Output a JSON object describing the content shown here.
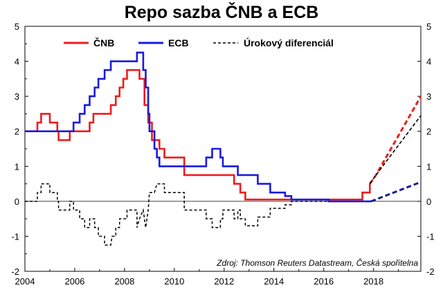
{
  "chart_data": {
    "type": "line",
    "title": "Repo sazba ČNB a ECB",
    "source": "Zdroj: Thomson Reuters Datastream, Česká spořitelna",
    "xlim": [
      2004,
      2019.9
    ],
    "ylim": [
      -2,
      5
    ],
    "x_ticks": [
      2004,
      2006,
      2008,
      2010,
      2012,
      2014,
      2016,
      2018
    ],
    "y_ticks": [
      -2,
      -1,
      0,
      1,
      2,
      3,
      4,
      5
    ],
    "grid": false,
    "legend_position": "top",
    "colors": {
      "cnb": "#ee1c1c",
      "ecb": "#1a1adf",
      "diff": "#000000",
      "forecast_ecb": "#1a1a8c"
    },
    "series": [
      {
        "name": "ČNB",
        "style": "solid",
        "points": [
          [
            2004,
            2.0
          ],
          [
            2004.5,
            2.0
          ],
          [
            2004.5,
            2.25
          ],
          [
            2004.65,
            2.25
          ],
          [
            2004.65,
            2.5
          ],
          [
            2005.0,
            2.5
          ],
          [
            2005.0,
            2.25
          ],
          [
            2005.3,
            2.25
          ],
          [
            2005.3,
            2.0
          ],
          [
            2005.35,
            2.0
          ],
          [
            2005.35,
            1.75
          ],
          [
            2005.8,
            1.75
          ],
          [
            2005.8,
            2.0
          ],
          [
            2006.6,
            2.0
          ],
          [
            2006.6,
            2.25
          ],
          [
            2006.75,
            2.25
          ],
          [
            2006.75,
            2.5
          ],
          [
            2007.45,
            2.5
          ],
          [
            2007.45,
            2.75
          ],
          [
            2007.65,
            2.75
          ],
          [
            2007.65,
            3.0
          ],
          [
            2007.8,
            3.0
          ],
          [
            2007.8,
            3.25
          ],
          [
            2007.95,
            3.25
          ],
          [
            2007.95,
            3.5
          ],
          [
            2008.1,
            3.5
          ],
          [
            2008.1,
            3.75
          ],
          [
            2008.6,
            3.75
          ],
          [
            2008.6,
            3.5
          ],
          [
            2008.8,
            3.5
          ],
          [
            2008.8,
            2.75
          ],
          [
            2008.95,
            2.75
          ],
          [
            2008.95,
            2.25
          ],
          [
            2009.1,
            2.25
          ],
          [
            2009.1,
            1.75
          ],
          [
            2009.4,
            1.75
          ],
          [
            2009.4,
            1.5
          ],
          [
            2009.6,
            1.5
          ],
          [
            2009.6,
            1.25
          ],
          [
            2010.4,
            1.25
          ],
          [
            2010.4,
            0.75
          ],
          [
            2012.4,
            0.75
          ],
          [
            2012.4,
            0.5
          ],
          [
            2012.65,
            0.5
          ],
          [
            2012.65,
            0.25
          ],
          [
            2012.85,
            0.25
          ],
          [
            2012.85,
            0.05
          ],
          [
            2017.55,
            0.05
          ],
          [
            2017.55,
            0.25
          ],
          [
            2017.85,
            0.25
          ],
          [
            2017.85,
            0.5
          ]
        ]
      },
      {
        "name": "ECB",
        "style": "solid",
        "points": [
          [
            2004,
            2.0
          ],
          [
            2005.95,
            2.0
          ],
          [
            2005.95,
            2.25
          ],
          [
            2006.2,
            2.25
          ],
          [
            2006.2,
            2.5
          ],
          [
            2006.4,
            2.5
          ],
          [
            2006.4,
            2.75
          ],
          [
            2006.6,
            2.75
          ],
          [
            2006.6,
            3.0
          ],
          [
            2006.8,
            3.0
          ],
          [
            2006.8,
            3.25
          ],
          [
            2006.95,
            3.25
          ],
          [
            2006.95,
            3.5
          ],
          [
            2007.2,
            3.5
          ],
          [
            2007.2,
            3.75
          ],
          [
            2007.45,
            3.75
          ],
          [
            2007.45,
            4.0
          ],
          [
            2008.5,
            4.0
          ],
          [
            2008.5,
            4.25
          ],
          [
            2008.75,
            4.25
          ],
          [
            2008.75,
            3.75
          ],
          [
            2008.85,
            3.75
          ],
          [
            2008.85,
            3.25
          ],
          [
            2008.95,
            3.25
          ],
          [
            2008.95,
            2.5
          ],
          [
            2009.0,
            2.5
          ],
          [
            2009.0,
            2.0
          ],
          [
            2009.2,
            2.0
          ],
          [
            2009.2,
            1.5
          ],
          [
            2009.3,
            1.5
          ],
          [
            2009.3,
            1.25
          ],
          [
            2009.4,
            1.25
          ],
          [
            2009.4,
            1.0
          ],
          [
            2011.28,
            1.0
          ],
          [
            2011.28,
            1.25
          ],
          [
            2011.52,
            1.25
          ],
          [
            2011.52,
            1.5
          ],
          [
            2011.85,
            1.5
          ],
          [
            2011.85,
            1.25
          ],
          [
            2011.95,
            1.25
          ],
          [
            2011.95,
            1.0
          ],
          [
            2012.55,
            1.0
          ],
          [
            2012.55,
            0.75
          ],
          [
            2013.35,
            0.75
          ],
          [
            2013.35,
            0.5
          ],
          [
            2013.85,
            0.5
          ],
          [
            2013.85,
            0.25
          ],
          [
            2014.45,
            0.25
          ],
          [
            2014.45,
            0.15
          ],
          [
            2014.7,
            0.15
          ],
          [
            2014.7,
            0.05
          ],
          [
            2016.2,
            0.05
          ],
          [
            2016.2,
            0.0
          ],
          [
            2017.9,
            0.0
          ]
        ]
      },
      {
        "name": "Úrokový diferenciál",
        "style": "dashed",
        "points": [
          [
            2004,
            0.0
          ],
          [
            2004.5,
            0.0
          ],
          [
            2004.5,
            0.25
          ],
          [
            2004.65,
            0.25
          ],
          [
            2004.65,
            0.5
          ],
          [
            2005.0,
            0.5
          ],
          [
            2005.0,
            0.25
          ],
          [
            2005.3,
            0.25
          ],
          [
            2005.3,
            0.0
          ],
          [
            2005.35,
            0.0
          ],
          [
            2005.35,
            -0.25
          ],
          [
            2005.8,
            -0.25
          ],
          [
            2005.8,
            0.0
          ],
          [
            2005.95,
            0.0
          ],
          [
            2005.95,
            -0.25
          ],
          [
            2006.2,
            -0.25
          ],
          [
            2006.2,
            -0.5
          ],
          [
            2006.4,
            -0.5
          ],
          [
            2006.4,
            -0.75
          ],
          [
            2006.6,
            -0.75
          ],
          [
            2006.6,
            -0.5
          ],
          [
            2006.8,
            -0.5
          ],
          [
            2006.8,
            -0.75
          ],
          [
            2006.95,
            -0.75
          ],
          [
            2006.95,
            -1.0
          ],
          [
            2007.2,
            -1.0
          ],
          [
            2007.2,
            -1.25
          ],
          [
            2007.45,
            -1.25
          ],
          [
            2007.45,
            -1.25
          ],
          [
            2007.5,
            -1.0
          ],
          [
            2007.65,
            -1.0
          ],
          [
            2007.65,
            -0.75
          ],
          [
            2007.8,
            -0.75
          ],
          [
            2007.8,
            -0.5
          ],
          [
            2008.1,
            -0.5
          ],
          [
            2008.1,
            -0.25
          ],
          [
            2008.5,
            -0.25
          ],
          [
            2008.5,
            -0.75
          ],
          [
            2008.6,
            -0.5
          ],
          [
            2008.75,
            -0.25
          ],
          [
            2008.85,
            -0.75
          ],
          [
            2008.95,
            -0.25
          ],
          [
            2009.0,
            0.25
          ],
          [
            2009.2,
            0.25
          ],
          [
            2009.3,
            0.5
          ],
          [
            2009.6,
            0.5
          ],
          [
            2009.6,
            0.25
          ],
          [
            2010.4,
            0.25
          ],
          [
            2010.4,
            -0.25
          ],
          [
            2011.28,
            -0.25
          ],
          [
            2011.28,
            -0.5
          ],
          [
            2011.52,
            -0.5
          ],
          [
            2011.52,
            -0.75
          ],
          [
            2011.85,
            -0.75
          ],
          [
            2011.85,
            -0.5
          ],
          [
            2011.95,
            -0.5
          ],
          [
            2011.95,
            -0.25
          ],
          [
            2012.4,
            -0.25
          ],
          [
            2012.4,
            -0.5
          ],
          [
            2012.55,
            -0.5
          ],
          [
            2012.55,
            -0.25
          ],
          [
            2012.65,
            -0.25
          ],
          [
            2012.65,
            -0.5
          ],
          [
            2012.85,
            -0.5
          ],
          [
            2012.85,
            -0.7
          ],
          [
            2013.35,
            -0.7
          ],
          [
            2013.35,
            -0.45
          ],
          [
            2013.85,
            -0.45
          ],
          [
            2013.85,
            -0.2
          ],
          [
            2014.45,
            -0.2
          ],
          [
            2014.45,
            -0.1
          ],
          [
            2014.7,
            -0.1
          ],
          [
            2014.7,
            0.0
          ],
          [
            2016.2,
            0.0
          ],
          [
            2016.2,
            0.05
          ],
          [
            2017.55,
            0.05
          ],
          [
            2017.55,
            0.25
          ],
          [
            2017.85,
            0.25
          ],
          [
            2017.85,
            0.5
          ]
        ]
      },
      {
        "style": "forecast-dashed",
        "series_ref": "ČNB",
        "points": [
          [
            2017.85,
            0.5
          ],
          [
            2018.1,
            0.75
          ],
          [
            2019.9,
            3.0
          ]
        ]
      },
      {
        "style": "forecast-dashed",
        "series_ref": "ECB",
        "points": [
          [
            2017.9,
            0.0
          ],
          [
            2019.9,
            0.55
          ]
        ]
      },
      {
        "style": "forecast-dashed",
        "series_ref": "Úrokový diferenciál",
        "points": [
          [
            2017.85,
            0.5
          ],
          [
            2018.1,
            0.75
          ],
          [
            2019.9,
            2.45
          ]
        ]
      }
    ]
  }
}
